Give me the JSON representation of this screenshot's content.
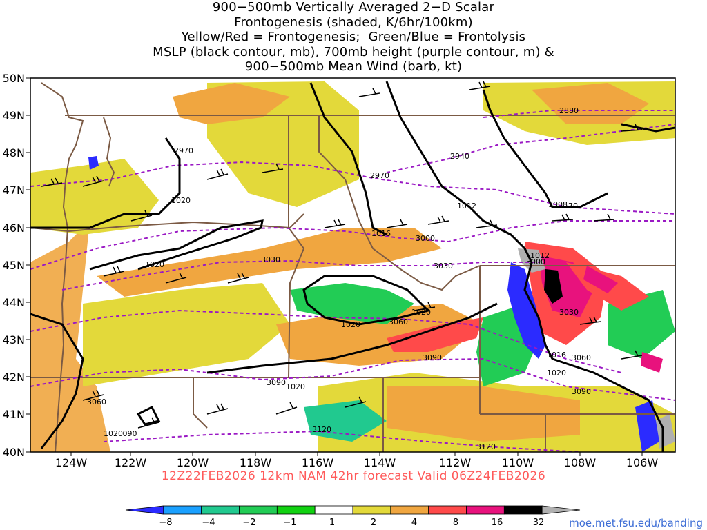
{
  "title": {
    "lines": [
      "900−500mb Vertically Averaged 2−D Scalar",
      "Frontogenesis (shaded, K/6hr/100km)",
      "Yellow/Red = Frontogenesis;  Green/Blue = Frontolysis",
      "MSLP (black contour, mb), 700mb height (purple contour, m) &",
      "900−500mb Mean Wind (barb, kt)"
    ]
  },
  "map": {
    "lat_labels": [
      "50N",
      "49N",
      "48N",
      "47N",
      "46N",
      "45N",
      "44N",
      "43N",
      "42N",
      "41N",
      "40N"
    ],
    "lon_labels": [
      "124W",
      "122W",
      "120W",
      "118W",
      "116W",
      "114W",
      "112W",
      "110W",
      "108W",
      "106W"
    ],
    "mslp_labels": [
      "1020",
      "1020",
      "1012",
      "1016",
      "1008",
      "1012",
      "1020",
      "1020",
      "1016",
      "1020",
      "1020",
      "1020"
    ],
    "height_labels": [
      "2970",
      "2970",
      "2940",
      "2880",
      "3000",
      "3030",
      "3030",
      "3060",
      "3030",
      "3090",
      "3090",
      "3060",
      "3090",
      "3120",
      "3120",
      "3060",
      "3000",
      "090",
      "70"
    ]
  },
  "colorbar": {
    "tick_labels": [
      "−8",
      "−4",
      "−2",
      "−1",
      "1",
      "2",
      "4",
      "8",
      "16",
      "32"
    ],
    "colors": [
      "#2b2bff",
      "#1aa0ff",
      "#21c98f",
      "#22cc55",
      "#11d111",
      "#ffffff",
      "#e3d93a",
      "#f0a640",
      "#ff4a4a",
      "#e8127d",
      "#000000",
      "#b0b0b0"
    ]
  },
  "valid_line": "12Z22FEB2026 12km NAM 42hr forecast Valid 06Z24FEB2026",
  "credit": "moe.met.fsu.edu/banding",
  "colors": {
    "frontogenesis_light": "#e3d93a",
    "frontogenesis_orange": "#f0a640",
    "frontogenesis_red": "#ff4a4a",
    "frontogenesis_magenta": "#e8127d",
    "frontolysis_green": "#22cc55",
    "frontolysis_blue": "#2b2bff",
    "mslp_contour": "#000000",
    "height_contour": "#9a18c4",
    "borders": "#7b5a44"
  }
}
